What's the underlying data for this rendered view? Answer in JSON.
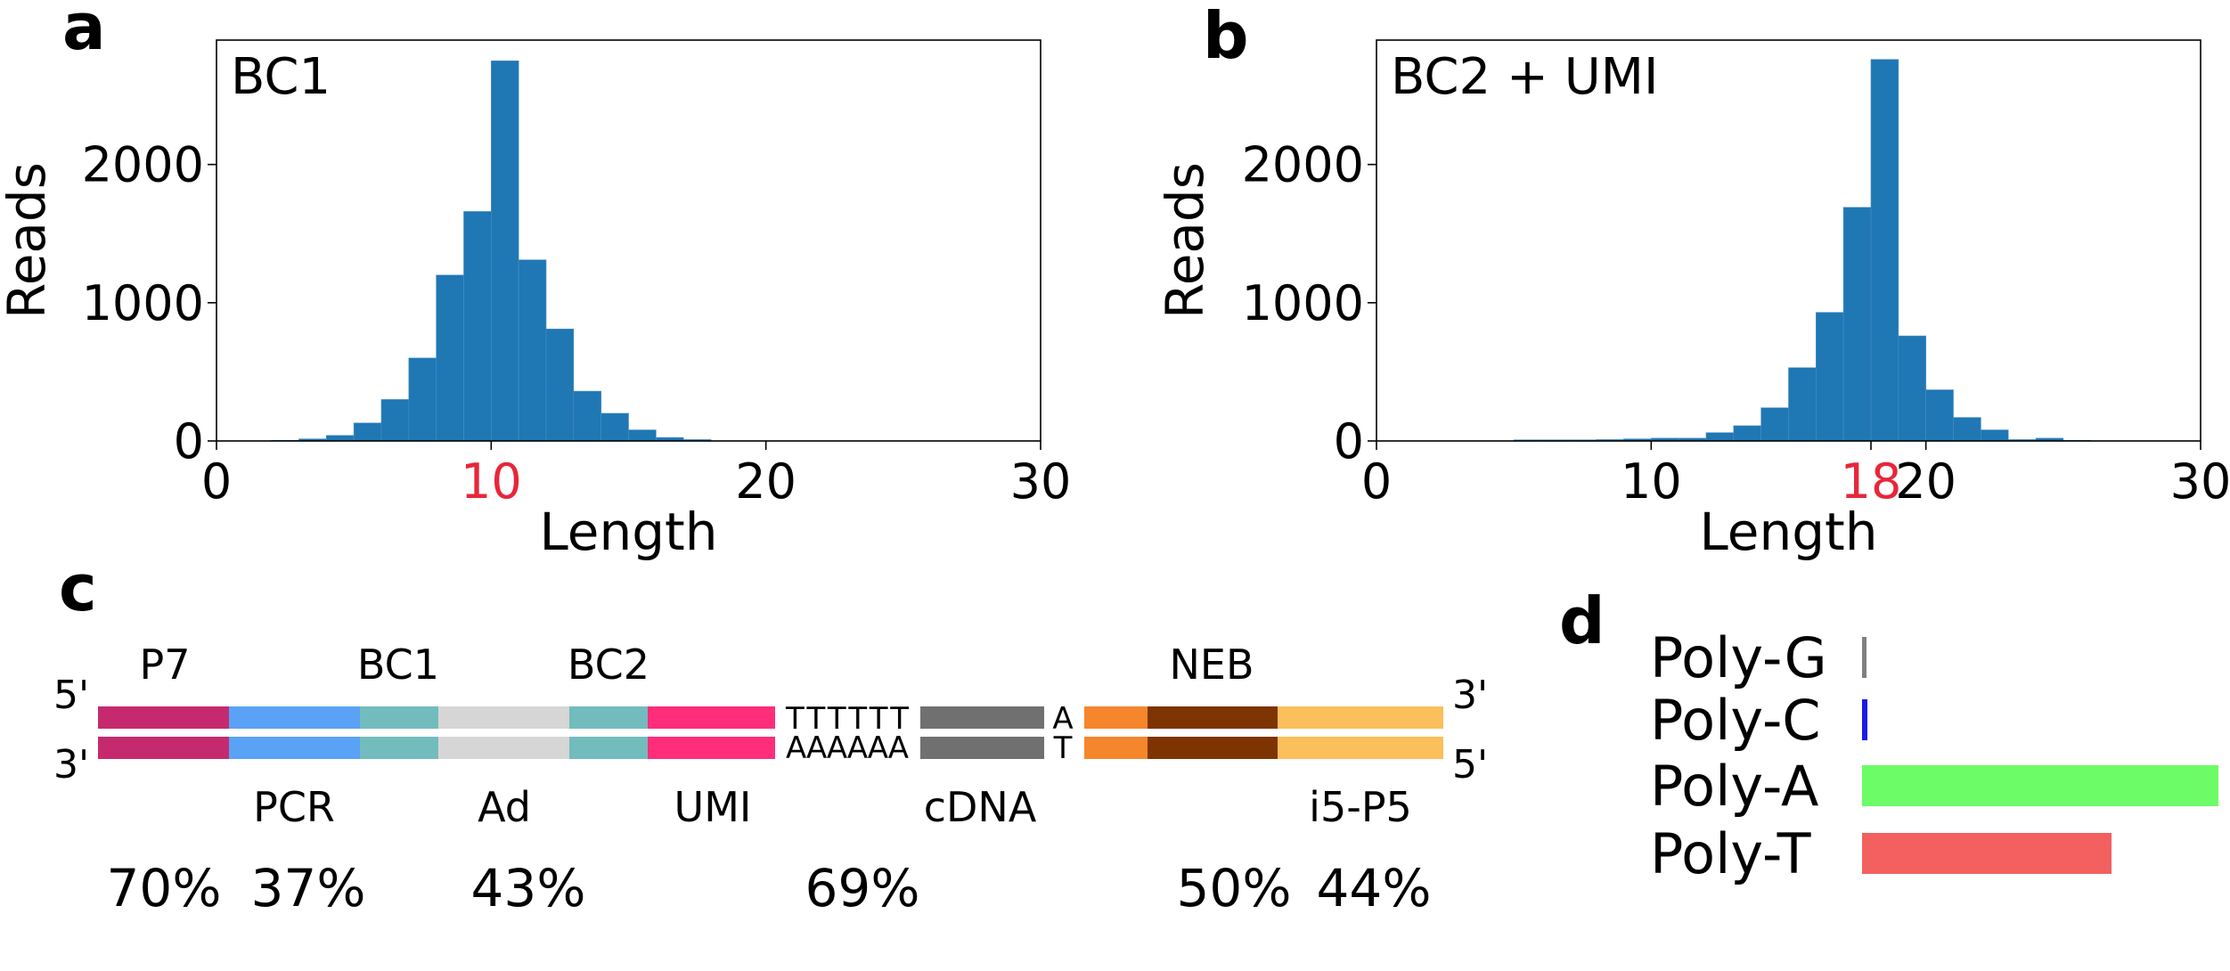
{
  "chart_data": [
    {
      "panel": "a",
      "type": "bar",
      "title": "BC1",
      "xlabel": "Length",
      "ylabel": "Reads",
      "xlim": [
        0,
        30
      ],
      "ylim": [
        0,
        2900
      ],
      "xticks": [
        "0",
        "10",
        "20",
        "30"
      ],
      "xticks_highlight": "10",
      "highlight_color": "#e8263a",
      "yticks": [
        "0",
        "1000",
        "2000"
      ],
      "bar_color": "#1f77b4",
      "bins": [
        {
          "x": 2,
          "y": 5
        },
        {
          "x": 3,
          "y": 15
        },
        {
          "x": 4,
          "y": 40
        },
        {
          "x": 5,
          "y": 130
        },
        {
          "x": 6,
          "y": 300
        },
        {
          "x": 7,
          "y": 600
        },
        {
          "x": 8,
          "y": 1200
        },
        {
          "x": 9,
          "y": 1660
        },
        {
          "x": 10,
          "y": 2750
        },
        {
          "x": 11,
          "y": 1310
        },
        {
          "x": 12,
          "y": 810
        },
        {
          "x": 13,
          "y": 360
        },
        {
          "x": 14,
          "y": 200
        },
        {
          "x": 15,
          "y": 80
        },
        {
          "x": 16,
          "y": 25
        },
        {
          "x": 17,
          "y": 10
        }
      ]
    },
    {
      "panel": "b",
      "type": "bar",
      "title": "BC2 + UMI",
      "xlabel": "Length",
      "ylabel": "Reads",
      "xlim": [
        0,
        30
      ],
      "ylim": [
        0,
        2900
      ],
      "xticks": [
        "0",
        "10",
        "18",
        "20",
        "30"
      ],
      "xticks_highlight": "18",
      "highlight_color": "#e8263a",
      "yticks": [
        "0",
        "1000",
        "2000"
      ],
      "bar_color": "#1f77b4",
      "bins": [
        {
          "x": 5,
          "y": 8
        },
        {
          "x": 6,
          "y": 8
        },
        {
          "x": 7,
          "y": 8
        },
        {
          "x": 8,
          "y": 10
        },
        {
          "x": 9,
          "y": 15
        },
        {
          "x": 10,
          "y": 20
        },
        {
          "x": 11,
          "y": 20
        },
        {
          "x": 12,
          "y": 60
        },
        {
          "x": 13,
          "y": 110
        },
        {
          "x": 14,
          "y": 240
        },
        {
          "x": 15,
          "y": 530
        },
        {
          "x": 16,
          "y": 930
        },
        {
          "x": 17,
          "y": 1690
        },
        {
          "x": 18,
          "y": 2760
        },
        {
          "x": 19,
          "y": 760
        },
        {
          "x": 20,
          "y": 370
        },
        {
          "x": 21,
          "y": 170
        },
        {
          "x": 22,
          "y": 80
        },
        {
          "x": 23,
          "y": 10
        },
        {
          "x": 24,
          "y": 20
        },
        {
          "x": 25,
          "y": 5
        }
      ]
    },
    {
      "panel": "c",
      "type": "diagram",
      "prime_left_top": "5'",
      "prime_left_bottom": "3'",
      "prime_right_top": "3'",
      "prime_right_bottom": "5'",
      "segments": [
        {
          "color": "#c62a6e"
        },
        {
          "color": "#5aa2f5"
        },
        {
          "color": "#72bcbe"
        },
        {
          "color": "#d6d6d6"
        },
        {
          "color": "#72bcbe"
        },
        {
          "color": "#ff2d7a"
        },
        {
          "color": "#707070"
        },
        {
          "color": "#f5862c"
        },
        {
          "color": "#7e3400"
        },
        {
          "color": "#fbbf5c"
        }
      ],
      "poly_top": "TTTTTT",
      "poly_bottom": "AAAAAA",
      "tail_top": "A",
      "tail_bottom": "T",
      "top_labels": [
        {
          "text": "P7"
        },
        {
          "text": "BC1"
        },
        {
          "text": "BC2"
        },
        {
          "text": "NEB"
        }
      ],
      "bottom_labels": [
        {
          "text": "PCR"
        },
        {
          "text": "Ad"
        },
        {
          "text": "UMI"
        },
        {
          "text": "cDNA"
        },
        {
          "text": "i5-P5"
        }
      ],
      "percentages": [
        {
          "text": "70%"
        },
        {
          "text": "37%"
        },
        {
          "text": "43%"
        },
        {
          "text": "69%"
        },
        {
          "text": "50%"
        },
        {
          "text": "44%"
        }
      ]
    },
    {
      "panel": "d",
      "type": "bar",
      "orientation": "horizontal",
      "categories": [
        "Poly-G",
        "Poly-C",
        "Poly-A",
        "Poly-T"
      ],
      "values": [
        0.01,
        0.015,
        1.0,
        0.7
      ],
      "colors": [
        "#808080",
        "#1a1ae6",
        "#6cfc68",
        "#f26060"
      ],
      "xlim": [
        0,
        1.0
      ]
    }
  ],
  "panel_letters": [
    "a",
    "b",
    "c",
    "d"
  ]
}
